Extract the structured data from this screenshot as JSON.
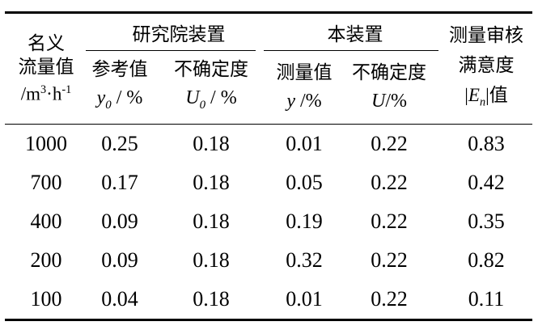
{
  "page": {
    "background": "#ffffff",
    "text_color": "#000000",
    "line_color": "#000000"
  },
  "table": {
    "col1_header": {
      "line1": "名义",
      "line2": "流量值",
      "unit_prefix": "/m",
      "unit_sup1": "3",
      "unit_mid": "·h",
      "unit_sup2": "-1"
    },
    "group_institute": {
      "title": "研究院装置",
      "ref": {
        "label": "参考值",
        "symbol": "y",
        "subscript": "0",
        "unit": " / %"
      },
      "unc": {
        "label": "不确定度",
        "symbol": "U",
        "subscript": "0",
        "unit": " / %"
      }
    },
    "group_device": {
      "title": "本装置",
      "meas": {
        "label": "测量值",
        "symbol": "y",
        "unit": " /%"
      },
      "unc": {
        "label": "不确定度",
        "symbol": "U",
        "unit": "/%"
      }
    },
    "col6_header": {
      "line1": "测量审核",
      "line2": "满意度",
      "en_open": "|",
      "en_symbol": "E",
      "en_subscript": "n",
      "en_close": "|值"
    },
    "rows": [
      {
        "flow": "1000",
        "y0": "0.25",
        "u0": "0.18",
        "y": "0.01",
        "u": "0.22",
        "en": "0.83"
      },
      {
        "flow": "700",
        "y0": "0.17",
        "u0": "0.18",
        "y": "0.05",
        "u": "0.22",
        "en": "0.42"
      },
      {
        "flow": "400",
        "y0": "0.09",
        "u0": "0.18",
        "y": "0.19",
        "u": "0.22",
        "en": "0.35"
      },
      {
        "flow": "200",
        "y0": "0.09",
        "u0": "0.18",
        "y": "0.32",
        "u": "0.22",
        "en": "0.82"
      },
      {
        "flow": "100",
        "y0": "0.04",
        "u0": "0.18",
        "y": "0.01",
        "u": "0.22",
        "en": "0.11"
      }
    ]
  }
}
